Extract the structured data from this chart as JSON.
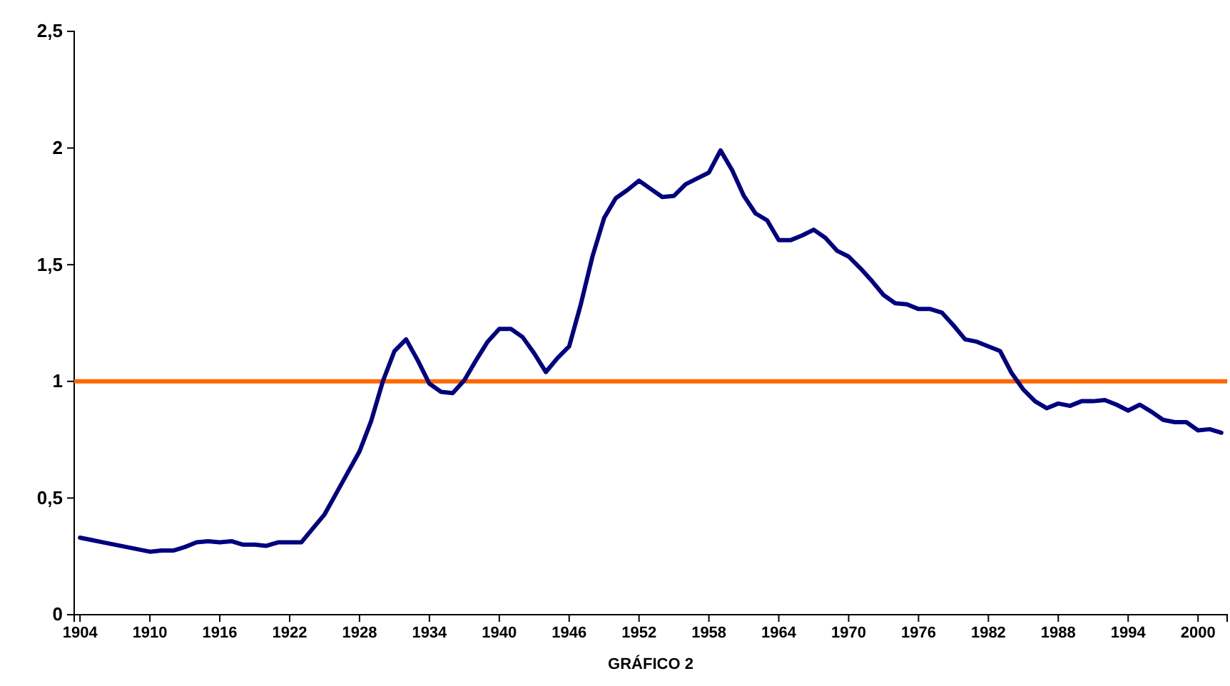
{
  "chart_data": {
    "type": "line",
    "xlabel": "GRÁFICO 2",
    "x": [
      1904,
      1905,
      1906,
      1907,
      1908,
      1909,
      1910,
      1911,
      1912,
      1913,
      1914,
      1915,
      1916,
      1917,
      1918,
      1919,
      1920,
      1921,
      1922,
      1923,
      1924,
      1925,
      1926,
      1927,
      1928,
      1929,
      1930,
      1931,
      1932,
      1933,
      1934,
      1935,
      1936,
      1937,
      1938,
      1939,
      1940,
      1941,
      1942,
      1943,
      1944,
      1945,
      1946,
      1947,
      1948,
      1949,
      1950,
      1951,
      1952,
      1953,
      1954,
      1955,
      1956,
      1957,
      1958,
      1959,
      1960,
      1961,
      1962,
      1963,
      1964,
      1965,
      1966,
      1967,
      1968,
      1969,
      1970,
      1971,
      1972,
      1973,
      1974,
      1975,
      1976,
      1977,
      1978,
      1979,
      1980,
      1981,
      1982,
      1983,
      1984,
      1985,
      1986,
      1987,
      1988,
      1989,
      1990,
      1991,
      1992,
      1993,
      1994,
      1995,
      1996,
      1997,
      1998,
      1999,
      2000,
      2001,
      2002
    ],
    "series": [
      {
        "color": "#000080",
        "values": [
          0.33,
          0.32,
          0.31,
          0.3,
          0.29,
          0.28,
          0.27,
          0.275,
          0.275,
          0.29,
          0.31,
          0.315,
          0.31,
          0.315,
          0.3,
          0.3,
          0.295,
          0.31,
          0.31,
          0.31,
          0.37,
          0.43,
          0.52,
          0.61,
          0.7,
          0.83,
          1.0,
          1.13,
          1.18,
          1.09,
          0.99,
          0.955,
          0.95,
          1.005,
          1.09,
          1.17,
          1.225,
          1.225,
          1.19,
          1.12,
          1.04,
          1.1,
          1.15,
          1.33,
          1.535,
          1.7,
          1.785,
          1.82,
          1.86,
          1.825,
          1.79,
          1.795,
          1.845,
          1.87,
          1.895,
          1.99,
          1.905,
          1.795,
          1.72,
          1.69,
          1.605,
          1.605,
          1.625,
          1.65,
          1.615,
          1.56,
          1.535,
          1.485,
          1.43,
          1.37,
          1.335,
          1.33,
          1.31,
          1.31,
          1.295,
          1.24,
          1.18,
          1.17,
          1.15,
          1.13,
          1.035,
          0.965,
          0.915,
          0.885,
          0.905,
          0.895,
          0.915,
          0.915,
          0.92,
          0.9,
          0.875,
          0.9,
          0.87,
          0.835,
          0.825,
          0.825,
          0.79,
          0.795,
          0.78
        ]
      }
    ],
    "xlim": [
      1903.5,
      2002.5
    ],
    "xticks": [
      1904,
      1910,
      1916,
      1922,
      1928,
      1934,
      1940,
      1946,
      1952,
      1958,
      1964,
      1970,
      1976,
      1982,
      1988,
      1994,
      2000
    ],
    "ylim": [
      0,
      2.5
    ],
    "yticks": [
      0,
      {
        "value": 0.5,
        "label": "0,5"
      },
      1,
      {
        "value": 1.5,
        "label": "1,5"
      },
      2,
      {
        "value": 2.5,
        "label": "2,5"
      }
    ],
    "ref_lines": [
      {
        "axis": "y",
        "value": 1,
        "color": "#ff6600"
      }
    ],
    "grid": false,
    "marker": "none",
    "line_style": "solid"
  }
}
